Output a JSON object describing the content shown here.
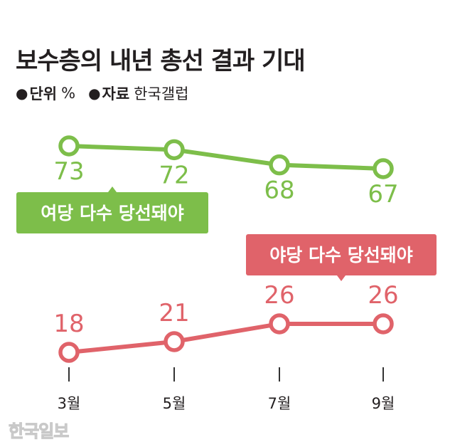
{
  "title": "보수층의 내년 총선 결과 기대",
  "meta": {
    "unit_label": "단위",
    "unit_value": "%",
    "source_label": "자료",
    "source_value": "한국갤럽"
  },
  "watermark": "한국일보",
  "colors": {
    "green": "#7dbe4a",
    "red": "#e0636a",
    "axis": "#333333",
    "text": "#231f20"
  },
  "chart_data": {
    "type": "line",
    "categories": [
      "3월",
      "5월",
      "7월",
      "9월"
    ],
    "series": [
      {
        "name": "여당 다수 당선돼야",
        "values": [
          73,
          72,
          68,
          67
        ],
        "color": "#7dbe4a"
      },
      {
        "name": "야당 다수 당선돼야",
        "values": [
          18,
          21,
          26,
          26
        ],
        "color": "#e0636a"
      }
    ],
    "unit": "%"
  }
}
